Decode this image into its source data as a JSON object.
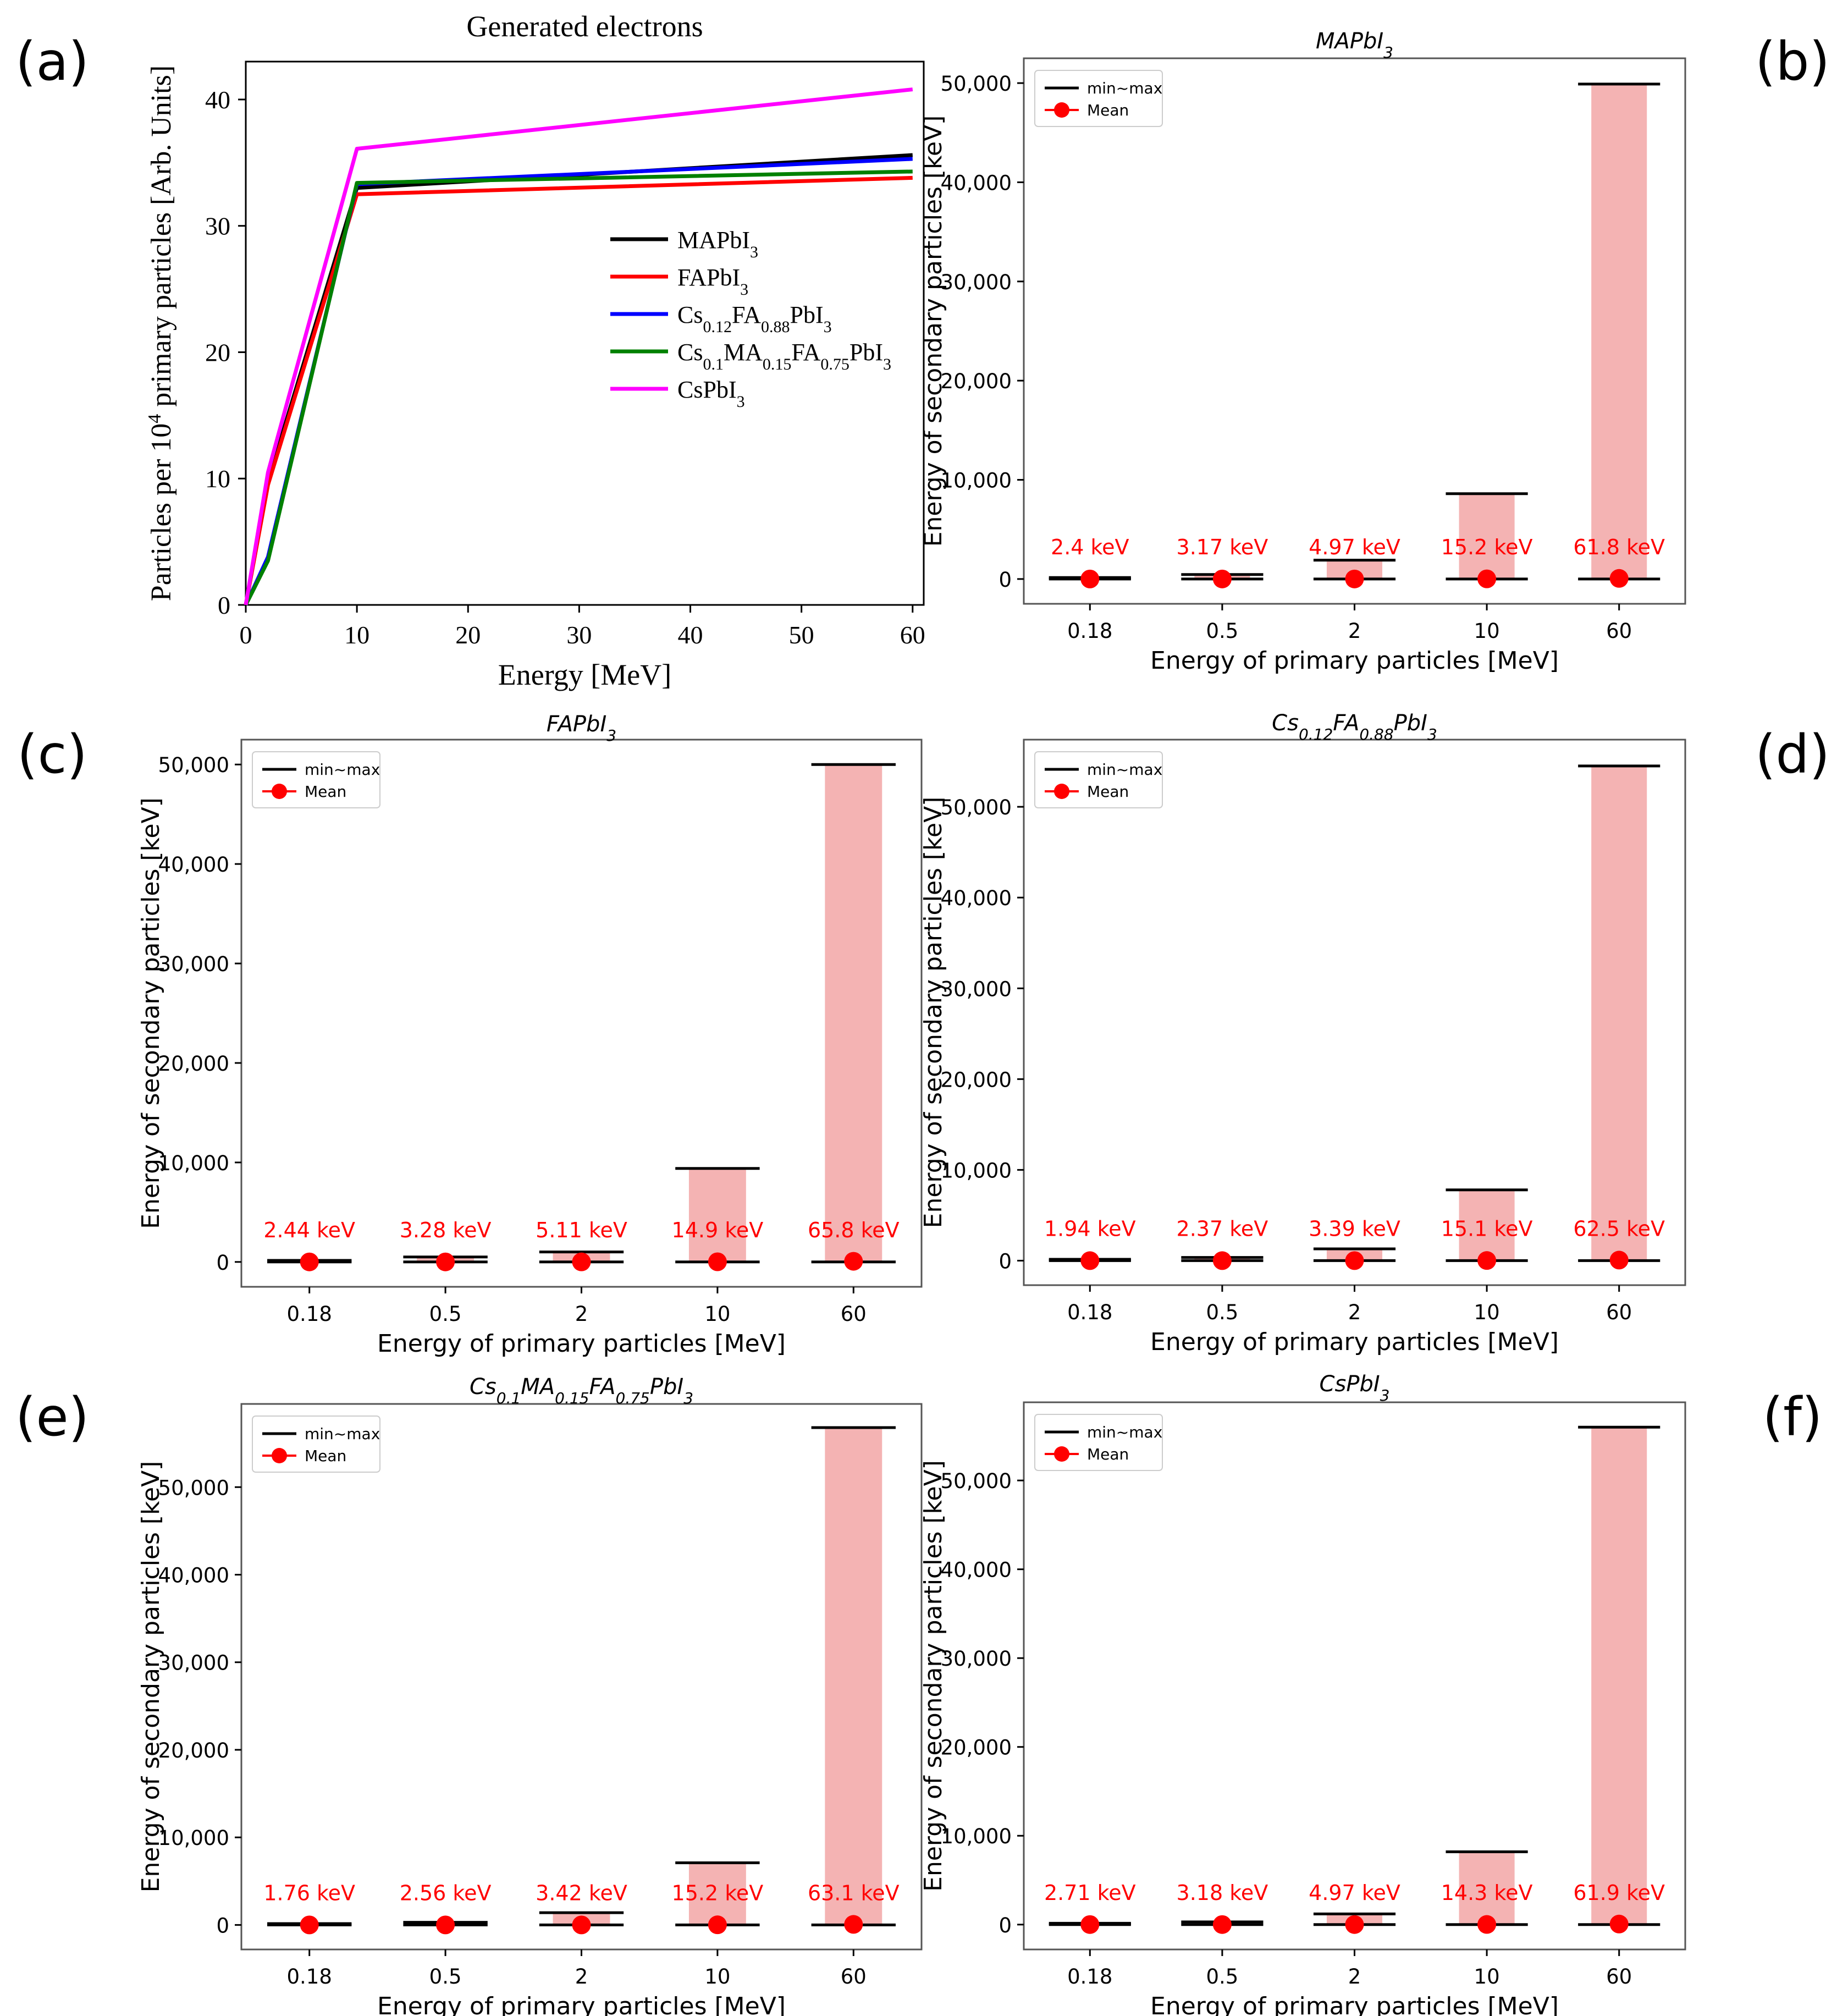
{
  "panel_labels": [
    "(a)",
    "(b)",
    "(c)",
    "(d)",
    "(e)",
    "(f)"
  ],
  "chart_data": [
    {
      "panel": "(a)",
      "type": "line",
      "title": "Generated electrons",
      "xlabel": "Energy [MeV]",
      "ylabel": "Particles per 10^4 primary particles [Arb. Units]",
      "xlim": [
        0,
        61
      ],
      "ylim": [
        0,
        43
      ],
      "xticks": [
        0,
        10,
        20,
        30,
        40,
        50,
        60
      ],
      "yticks": [
        0,
        10,
        20,
        30,
        40
      ],
      "grid": false,
      "legend_position": "center-right",
      "x": [
        0,
        2,
        10,
        60
      ],
      "series": [
        {
          "name": "MAPbI3",
          "color": "#000000",
          "values": [
            0,
            9.8,
            33.0,
            35.6
          ]
        },
        {
          "name": "FAPbI3",
          "color": "#ff0000",
          "values": [
            0,
            9.5,
            32.5,
            33.8
          ]
        },
        {
          "name": "Cs0.12FA0.88PbI3",
          "color": "#0000ff",
          "values": [
            0,
            3.8,
            33.3,
            35.3
          ]
        },
        {
          "name": "Cs0.1MA0.15FA0.75PbI3",
          "color": "#008000",
          "values": [
            0,
            3.5,
            33.4,
            34.3
          ]
        },
        {
          "name": "CsPbI3",
          "color": "#ff00ff",
          "values": [
            0,
            10.5,
            36.1,
            40.8
          ]
        }
      ]
    },
    {
      "panel": "(b)",
      "type": "bar",
      "title": "MAPbI3",
      "xlabel": "Energy of primary particles [MeV]",
      "ylabel": "Energy of secondary particles [keV]",
      "categories": [
        "0.18",
        "0.5",
        "2",
        "10",
        "60"
      ],
      "ylim": [
        -2500,
        52500
      ],
      "yticks": [
        0,
        10000,
        20000,
        30000,
        40000,
        50000
      ],
      "ytick_labels": [
        "0",
        "10,000",
        "20,000",
        "30,000",
        "40,000",
        "50,000"
      ],
      "legend": [
        "min~max",
        "Mean"
      ],
      "legend_position": "top-left",
      "grid": false,
      "min": [
        0,
        0,
        0,
        0,
        0
      ],
      "max": [
        150,
        450,
        1900,
        8600,
        49900
      ],
      "mean": [
        2.4,
        3.17,
        4.97,
        15.2,
        61.8
      ],
      "mean_labels": [
        "2.4 keV",
        "3.17 keV",
        "4.97 keV",
        "15.2 keV",
        "61.8 keV"
      ]
    },
    {
      "panel": "(c)",
      "type": "bar",
      "title": "FAPbI3",
      "xlabel": "Energy of primary particles [MeV]",
      "ylabel": "Energy of secondary particles [keV]",
      "categories": [
        "0.18",
        "0.5",
        "2",
        "10",
        "60"
      ],
      "ylim": [
        -2500,
        52500
      ],
      "yticks": [
        0,
        10000,
        20000,
        30000,
        40000,
        50000
      ],
      "ytick_labels": [
        "0",
        "10,000",
        "20,000",
        "30,000",
        "40,000",
        "50,000"
      ],
      "legend": [
        "min~max",
        "Mean"
      ],
      "legend_position": "top-left",
      "grid": false,
      "min": [
        0,
        0,
        0,
        0,
        0
      ],
      "max": [
        150,
        500,
        1000,
        9400,
        50000
      ],
      "mean": [
        2.44,
        3.28,
        5.11,
        14.9,
        65.8
      ],
      "mean_labels": [
        "2.44 keV",
        "3.28 keV",
        "5.11 keV",
        "14.9 keV",
        "65.8 keV"
      ]
    },
    {
      "panel": "(d)",
      "type": "bar",
      "title": "Cs0.12FA0.88PbI3",
      "xlabel": "Energy of primary particles [MeV]",
      "ylabel": "Energy of secondary particles [keV]",
      "categories": [
        "0.18",
        "0.5",
        "2",
        "10",
        "60"
      ],
      "ylim": [
        -2700,
        57400
      ],
      "yticks": [
        0,
        10000,
        20000,
        30000,
        40000,
        50000
      ],
      "ytick_labels": [
        "0",
        "10,000",
        "20,000",
        "30,000",
        "40,000",
        "50,000"
      ],
      "legend": [
        "min~max",
        "Mean"
      ],
      "legend_position": "top-left",
      "grid": false,
      "min": [
        0,
        0,
        0,
        0,
        0
      ],
      "max": [
        150,
        350,
        1300,
        7800,
        54500
      ],
      "mean": [
        1.94,
        2.37,
        3.39,
        15.1,
        62.5
      ],
      "mean_labels": [
        "1.94 keV",
        "2.37 keV",
        "3.39 keV",
        "15.1 keV",
        "62.5 keV"
      ]
    },
    {
      "panel": "(e)",
      "type": "bar",
      "title": "Cs0.1MA0.15FA0.75PbI3",
      "xlabel": "Energy of primary particles [MeV]",
      "ylabel": "Energy of secondary particles [keV]",
      "categories": [
        "0.18",
        "0.5",
        "2",
        "10",
        "60"
      ],
      "ylim": [
        -2800,
        59500
      ],
      "yticks": [
        0,
        10000,
        20000,
        30000,
        40000,
        50000
      ],
      "ytick_labels": [
        "0",
        "10,000",
        "20,000",
        "30,000",
        "40,000",
        "50,000"
      ],
      "legend": [
        "min~max",
        "Mean"
      ],
      "legend_position": "top-left",
      "grid": false,
      "min": [
        0,
        0,
        0,
        0,
        0
      ],
      "max": [
        150,
        300,
        1400,
        7100,
        56800
      ],
      "mean": [
        1.76,
        2.56,
        3.42,
        15.2,
        63.1
      ],
      "mean_labels": [
        "1.76 keV",
        "2.56 keV",
        "3.42 keV",
        "15.2 keV",
        "63.1 keV"
      ]
    },
    {
      "panel": "(f)",
      "type": "bar",
      "title": "CsPbI3",
      "xlabel": "Energy of primary particles [MeV]",
      "ylabel": "Energy of secondary particles [keV]",
      "categories": [
        "0.18",
        "0.5",
        "2",
        "10",
        "60"
      ],
      "ylim": [
        -2800,
        58800
      ],
      "yticks": [
        0,
        10000,
        20000,
        30000,
        40000,
        50000
      ],
      "ytick_labels": [
        "0",
        "10,000",
        "20,000",
        "30,000",
        "40,000",
        "50,000"
      ],
      "legend": [
        "min~max",
        "Mean"
      ],
      "legend_position": "top-left",
      "grid": false,
      "min": [
        0,
        0,
        0,
        0,
        0
      ],
      "max": [
        150,
        300,
        1200,
        8200,
        56000
      ],
      "mean": [
        2.71,
        3.18,
        4.97,
        14.3,
        61.9
      ],
      "mean_labels": [
        "2.71 keV",
        "3.18 keV",
        "4.97 keV",
        "14.3 keV",
        "61.9 keV"
      ]
    }
  ]
}
